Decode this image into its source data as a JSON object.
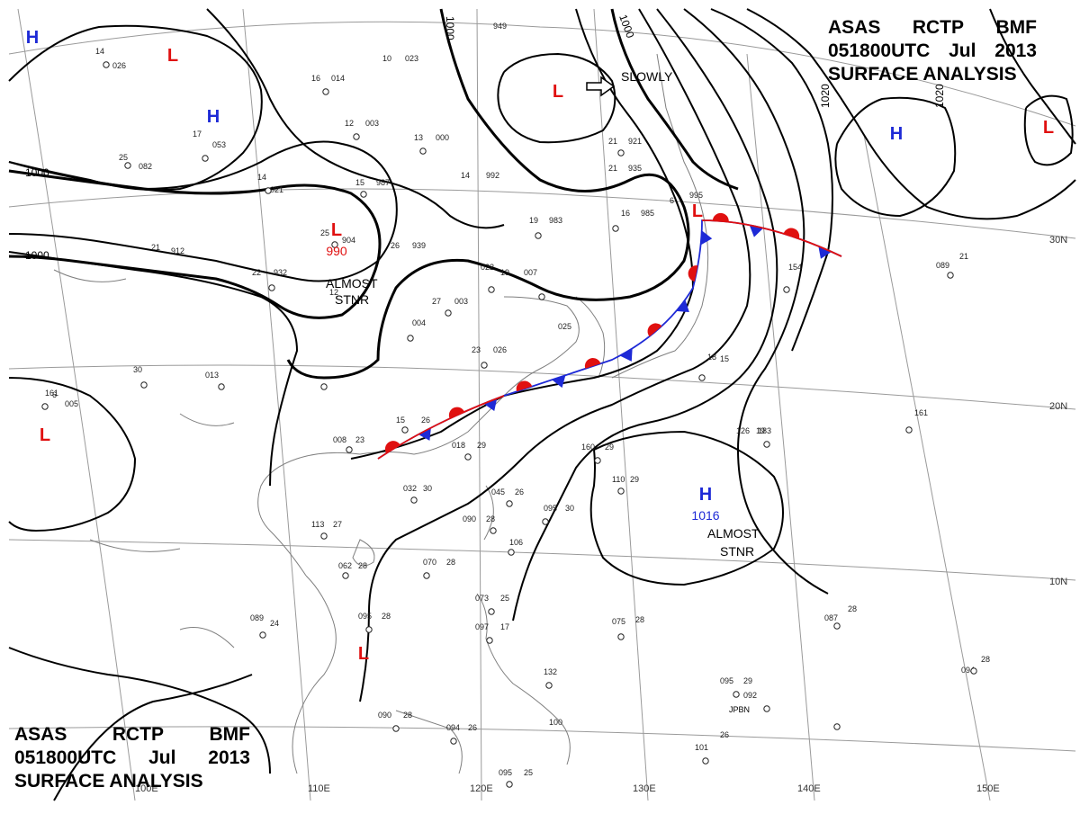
{
  "header": {
    "line1": [
      "ASAS",
      "RCTP",
      "BMF"
    ],
    "line2": [
      "051800UTC",
      "Jul",
      "2013"
    ],
    "line3": "SURFACE ANALYSIS"
  },
  "colors": {
    "isobar": "#000000",
    "grid": "#999999",
    "coast": "#7f7f7f",
    "high": "#1e2ad6",
    "low": "#e01010",
    "warm_front": "#e01010",
    "cold_front": "#1e2ad6"
  },
  "lat_labels": [
    "30N",
    "20N",
    "10N"
  ],
  "lon_labels": [
    "100E",
    "110E",
    "120E",
    "130E",
    "140E",
    "150E"
  ],
  "isobar_values": [
    "1000",
    "1000",
    "1000",
    "1000",
    "1020",
    "1020"
  ],
  "pressure_centers": [
    {
      "type": "H",
      "color": "#1e2ad6"
    },
    {
      "type": "H",
      "color": "#1e2ad6"
    },
    {
      "type": "H",
      "color": "#1e2ad6"
    },
    {
      "type": "H",
      "color": "#1e2ad6",
      "value": "1016"
    },
    {
      "type": "L",
      "color": "#e01010"
    },
    {
      "type": "L",
      "color": "#e01010"
    },
    {
      "type": "L",
      "color": "#e01010",
      "value": "990"
    },
    {
      "type": "L",
      "color": "#e01010"
    },
    {
      "type": "L",
      "color": "#e01010"
    },
    {
      "type": "L",
      "color": "#e01010"
    },
    {
      "type": "L",
      "color": "#e01010"
    }
  ],
  "annotations": {
    "slowly": "SLOWLY",
    "almost_stnr_1": [
      "ALMOST",
      "STNR"
    ],
    "almost_stnr_2": [
      "ALMOST",
      "STNR"
    ],
    "jpbn": "JPBN"
  },
  "station_values": [
    "14",
    "026",
    "10",
    "023",
    "949",
    "16",
    "014",
    "12",
    "003",
    "13",
    "000",
    "17",
    "053",
    "25",
    "082",
    "14",
    "021",
    "15",
    "987",
    "21",
    "921",
    "16",
    "985",
    "14",
    "992",
    "21",
    "935",
    "19",
    "983",
    "6",
    "995",
    "25",
    "904",
    "21",
    "912",
    "26",
    "939",
    "22",
    "932",
    "27",
    "003",
    "022",
    "19",
    "007",
    "004",
    "23",
    "026",
    "025",
    "15",
    "26",
    "008",
    "23",
    "018",
    "29",
    "032",
    "30",
    "045",
    "26",
    "090",
    "28",
    "095",
    "30",
    "106",
    "113",
    "27",
    "062",
    "28",
    "070",
    "28",
    "089",
    "24",
    "095",
    "28",
    "073",
    "25",
    "097",
    "17",
    "075",
    "28",
    "160",
    "29",
    "110",
    "29",
    "132",
    "100",
    "090",
    "28",
    "094",
    "26",
    "095",
    "25",
    "095",
    "29",
    "092",
    "101",
    "26",
    "087",
    "28",
    "094",
    "28",
    "089",
    "21",
    "183",
    "161",
    "154",
    "18",
    "126",
    "19",
    "161",
    "6",
    "005",
    "30",
    "013",
    "12",
    "15",
    "026",
    "24"
  ]
}
